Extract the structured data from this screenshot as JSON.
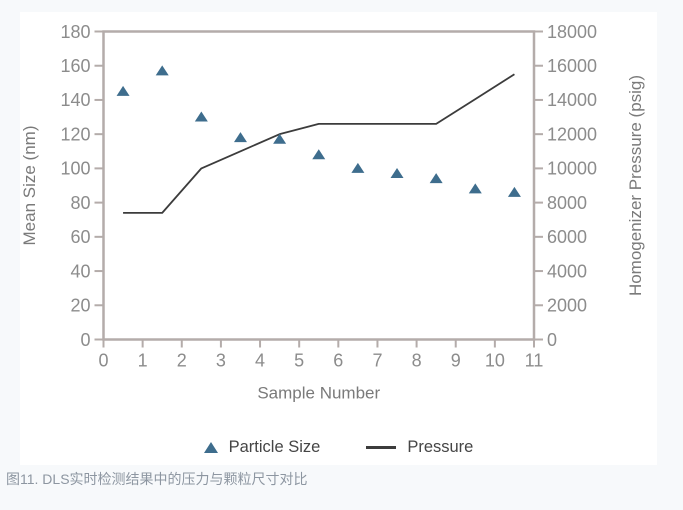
{
  "page": {
    "background": "#f7f9fb",
    "panel_background": "#ffffff"
  },
  "caption": {
    "text": "图11. DLS实时检测结果中的压力与颗粒尺寸对比",
    "color": "#8d96a1"
  },
  "legend": {
    "position": "bottom",
    "items": [
      {
        "label": "Particle Size",
        "marker": "triangle",
        "color": "#3e6d8d"
      },
      {
        "label": "Pressure",
        "marker": "line",
        "color": "#3c3c3c"
      }
    ]
  },
  "chart_data": {
    "type": "combo",
    "x": [
      0.5,
      1.5,
      2.5,
      3.5,
      4.5,
      5.5,
      6.5,
      7.5,
      8.5,
      9.5,
      10.5
    ],
    "series": [
      {
        "name": "Particle Size",
        "chart_type": "scatter",
        "marker": "triangle",
        "color": "#3e6d8d",
        "y_axis": "left",
        "values": [
          145,
          157,
          130,
          118,
          117,
          108,
          100,
          97,
          94,
          88,
          86
        ]
      },
      {
        "name": "Pressure",
        "chart_type": "line",
        "color": "#3c3c3c",
        "y_axis": "right",
        "values": [
          7400,
          7400,
          10000,
          11000,
          12000,
          12600,
          12600,
          12600,
          12600,
          14050,
          15500
        ]
      }
    ],
    "x_axis": {
      "label": "Sample Number",
      "min": 0,
      "max": 11,
      "ticks": [
        0,
        1,
        2,
        3,
        4,
        5,
        6,
        7,
        8,
        9,
        10,
        11
      ]
    },
    "y_left_axis": {
      "label": "Mean Size (nm)",
      "min": 0,
      "max": 180,
      "ticks": [
        0,
        20,
        40,
        60,
        80,
        100,
        120,
        140,
        160,
        180
      ]
    },
    "y_right_axis": {
      "label": "Homogenizer Pressure (psig)",
      "min": 0,
      "max": 18000,
      "ticks": [
        0,
        2000,
        4000,
        6000,
        8000,
        10000,
        12000,
        14000,
        16000,
        18000
      ]
    },
    "grid": false,
    "styles": {
      "frame_color": "#b4acaa",
      "tick_label_color": "#8c8c8c",
      "axis_title_color": "#7a7a7a"
    }
  }
}
